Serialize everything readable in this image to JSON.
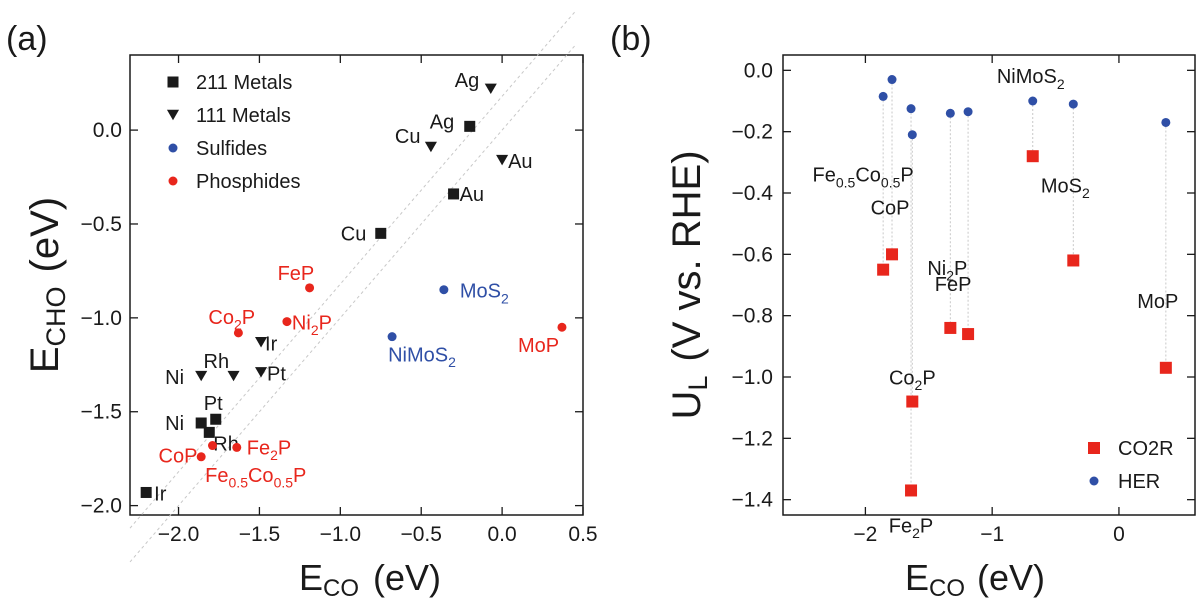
{
  "chart_data": [
    {
      "type": "scatter",
      "panel_label": "(a)",
      "xlabel": "E",
      "xlabel_sub": "CO",
      "xlabel_unit": "(eV)",
      "ylabel": "E",
      "ylabel_sub": "CHO",
      "ylabel_unit": "(eV)",
      "xlim": [
        -2.3,
        0.5
      ],
      "ylim": [
        -2.05,
        0.4
      ],
      "x_ticks": [
        "-2.0",
        "-1.5",
        "-1.0",
        "-0.5",
        "0.0",
        "0.5"
      ],
      "y_ticks": [
        "-2.0",
        "-1.5",
        "-1.0",
        "-0.5",
        "0.0"
      ],
      "legend_position": "top-left",
      "series": [
        {
          "name": "211 Metals",
          "marker": "square",
          "color": "#1a1a1a",
          "points": [
            {
              "label": "Ag",
              "x": -0.2,
              "y": 0.02
            },
            {
              "label": "Au",
              "x": -0.3,
              "y": -0.34
            },
            {
              "label": "Cu",
              "x": -0.75,
              "y": -0.55
            },
            {
              "label": "Pt",
              "x": -1.77,
              "y": -1.54
            },
            {
              "label": "Ni",
              "x": -1.86,
              "y": -1.56
            },
            {
              "label": "Rh",
              "x": -1.81,
              "y": -1.61
            },
            {
              "label": "Ir",
              "x": -2.2,
              "y": -1.93
            }
          ]
        },
        {
          "name": "111 Metals",
          "marker": "triangle-down",
          "color": "#1a1a1a",
          "points": [
            {
              "label": "Ag",
              "x": -0.07,
              "y": 0.22
            },
            {
              "label": "Cu",
              "x": -0.44,
              "y": -0.09
            },
            {
              "label": "Au",
              "x": 0.0,
              "y": -0.16
            },
            {
              "label": "Ir",
              "x": -1.49,
              "y": -1.13
            },
            {
              "label": "Ni",
              "x": -1.86,
              "y": -1.31
            },
            {
              "label": "Rh",
              "x": -1.66,
              "y": -1.31
            },
            {
              "label": "Pt",
              "x": -1.49,
              "y": -1.29
            }
          ]
        },
        {
          "name": "Sulfides",
          "marker": "circle",
          "color": "#2f4fa6",
          "points": [
            {
              "label": "MoS",
              "label_sub": "2",
              "x": -0.36,
              "y": -0.85
            },
            {
              "label": "NiMoS",
              "label_sub": "2",
              "x": -0.68,
              "y": -1.1
            }
          ]
        },
        {
          "name": "Phosphides",
          "marker": "circle",
          "color": "#e8261c",
          "points": [
            {
              "label": "FeP",
              "x": -1.19,
              "y": -0.84
            },
            {
              "label": "Co",
              "label_sub": "2",
              "label_tail": "P",
              "x": -1.63,
              "y": -1.08
            },
            {
              "label": "Ni",
              "label_sub": "2",
              "label_tail": "P",
              "x": -1.33,
              "y": -1.02
            },
            {
              "label": "MoP",
              "x": 0.37,
              "y": -1.05
            },
            {
              "label": "Fe",
              "label_sub": "2",
              "label_tail": "P",
              "x": -1.64,
              "y": -1.69
            },
            {
              "label": "CoP",
              "x": -1.79,
              "y": -1.68
            },
            {
              "label": "Fe",
              "label_sub": "0.5",
              "label_tail": "Co",
              "label_sub2": "0.5",
              "label_tail2": "P",
              "x": -1.86,
              "y": -1.74
            }
          ]
        }
      ]
    },
    {
      "type": "scatter",
      "panel_label": "(b)",
      "xlabel": "E",
      "xlabel_sub": "CO",
      "xlabel_unit": "(eV)",
      "ylabel": "U",
      "ylabel_sub": "L",
      "ylabel_unit": "(V vs. RHE)",
      "xlim": [
        -2.65,
        0.6
      ],
      "ylim": [
        -1.45,
        0.05
      ],
      "x_ticks": [
        "-2",
        "-1",
        "0"
      ],
      "y_ticks": [
        "0.0",
        "-0.2",
        "-0.4",
        "-0.6",
        "-0.8",
        "-1.0",
        "-1.2",
        "-1.4"
      ],
      "legend_position": "bottom-right",
      "series": [
        {
          "name": "CO2R",
          "marker": "square",
          "color": "#e8261c"
        },
        {
          "name": "HER",
          "marker": "circle",
          "color": "#2f4fa6"
        }
      ],
      "materials": [
        {
          "label": "Fe",
          "label_sub": "0.5",
          "label_tail": "Co",
          "label_sub2": "0.5",
          "label_tail2": "P",
          "x": -1.86,
          "co2r": -0.65,
          "her": -0.085
        },
        {
          "label": "CoP",
          "x": -1.79,
          "co2r": -0.6,
          "her": -0.03
        },
        {
          "label": "Co",
          "label_sub": "2",
          "label_tail": "P",
          "x": -1.63,
          "co2r": -1.08,
          "her": -0.21
        },
        {
          "label": "Fe",
          "label_sub": "2",
          "label_tail": "P",
          "x": -1.64,
          "co2r": -1.37,
          "her": -0.125
        },
        {
          "label": "Ni",
          "label_sub": "2",
          "label_tail": "P",
          "x": -1.33,
          "co2r": -0.84,
          "her": -0.14
        },
        {
          "label": "FeP",
          "x": -1.19,
          "co2r": -0.86,
          "her": -0.135
        },
        {
          "label": "NiMoS",
          "label_sub": "2",
          "x": -0.68,
          "co2r": -0.28,
          "her": -0.1
        },
        {
          "label": "MoS",
          "label_sub": "2",
          "x": -0.36,
          "co2r": -0.62,
          "her": -0.11
        },
        {
          "label": "MoP",
          "x": 0.37,
          "co2r": -0.97,
          "her": -0.17
        }
      ]
    }
  ]
}
